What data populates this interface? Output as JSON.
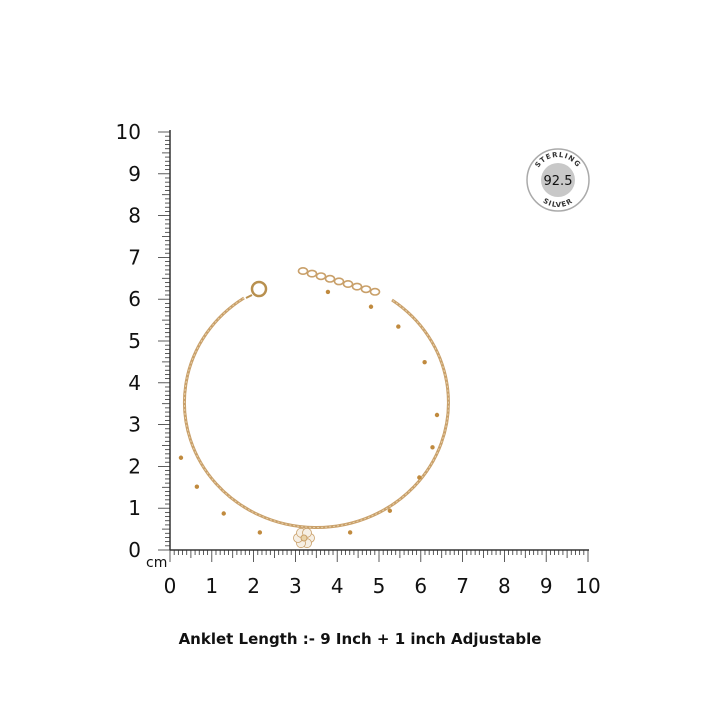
{
  "ruler": {
    "unit_label": "cm",
    "vertical_labels": [
      "0",
      "1",
      "2",
      "3",
      "4",
      "5",
      "6",
      "7",
      "8",
      "9",
      "10"
    ],
    "horizontal_labels": [
      "0",
      "1",
      "2",
      "3",
      "4",
      "5",
      "6",
      "7",
      "8",
      "9",
      "10"
    ]
  },
  "badge": {
    "top_text": "STERLING",
    "center_text": "92.5",
    "bottom_text": "SILVER"
  },
  "caption": "Anklet Length :- 9 Inch + 1 inch Adjustable",
  "colors": {
    "chain": "#c9a06a",
    "badge_fill": "#c8c8c8",
    "ruler": "#333333"
  }
}
